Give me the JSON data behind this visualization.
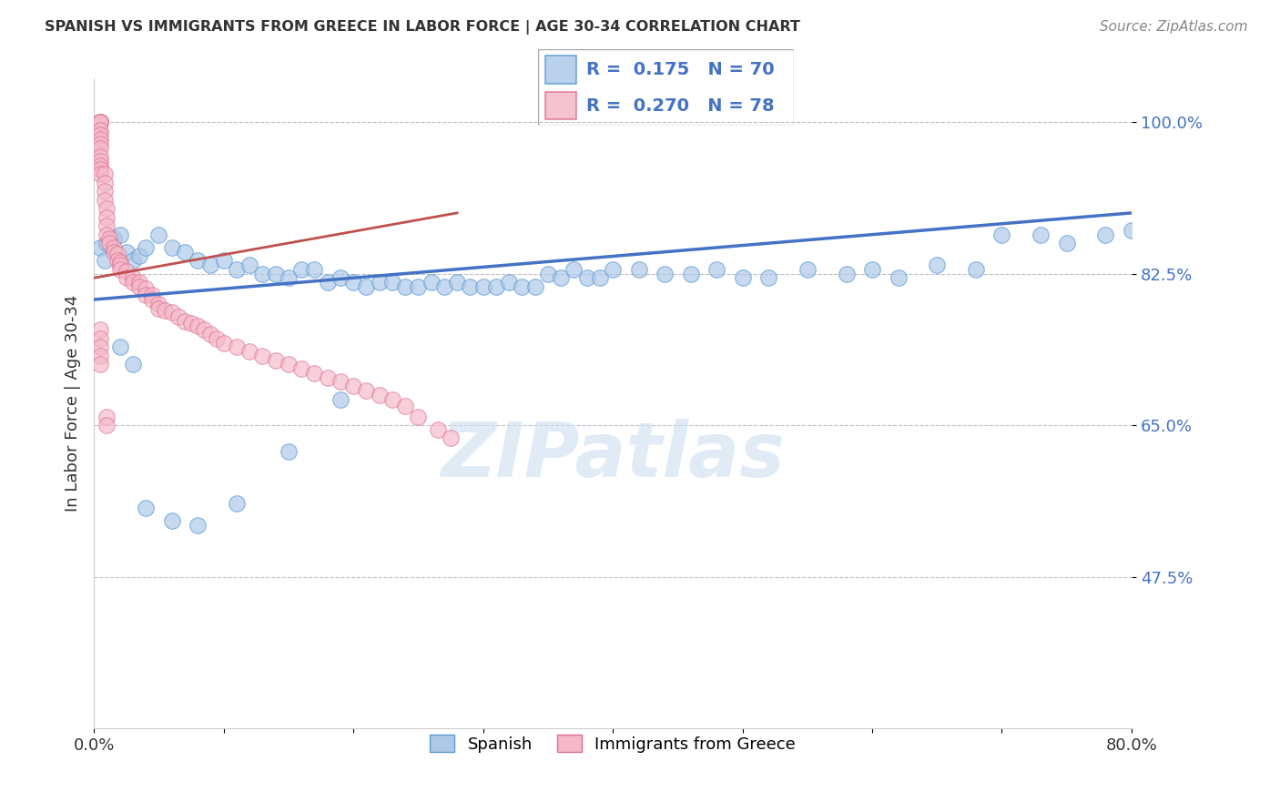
{
  "title": "SPANISH VS IMMIGRANTS FROM GREECE IN LABOR FORCE | AGE 30-34 CORRELATION CHART",
  "source": "Source: ZipAtlas.com",
  "ylabel": "In Labor Force | Age 30-34",
  "xlim": [
    0.0,
    0.8
  ],
  "ylim": [
    0.3,
    1.05
  ],
  "xticks": [
    0.0,
    0.1,
    0.2,
    0.3,
    0.4,
    0.5,
    0.6,
    0.7,
    0.8
  ],
  "xticklabels": [
    "0.0%",
    "",
    "",
    "",
    "",
    "",
    "",
    "",
    "80.0%"
  ],
  "yticks": [
    0.475,
    0.65,
    0.825,
    1.0
  ],
  "yticklabels": [
    "47.5%",
    "65.0%",
    "82.5%",
    "100.0%"
  ],
  "blue_R": 0.175,
  "blue_N": 70,
  "pink_R": 0.27,
  "pink_N": 78,
  "blue_color": "#aec9e8",
  "pink_color": "#f4b8c8",
  "blue_edge_color": "#5b9bd5",
  "pink_edge_color": "#e07090",
  "blue_line_color": "#4472c4",
  "pink_line_color": "#c0504d",
  "ytick_color": "#4472c4",
  "legend_label_blue": "Spanish",
  "legend_label_pink": "Immigrants from Greece",
  "blue_line_x0": 0.0,
  "blue_line_y0": 0.795,
  "blue_line_x1": 0.8,
  "blue_line_y1": 0.895,
  "pink_line_x0": 0.0,
  "pink_line_y0": 0.82,
  "pink_line_x1": 0.28,
  "pink_line_y1": 0.895,
  "blue_scatter_x": [
    0.005,
    0.008,
    0.01,
    0.015,
    0.02,
    0.025,
    0.03,
    0.035,
    0.04,
    0.05,
    0.06,
    0.07,
    0.08,
    0.09,
    0.1,
    0.11,
    0.12,
    0.13,
    0.14,
    0.15,
    0.16,
    0.17,
    0.18,
    0.19,
    0.2,
    0.21,
    0.22,
    0.23,
    0.24,
    0.25,
    0.26,
    0.27,
    0.28,
    0.29,
    0.3,
    0.31,
    0.32,
    0.33,
    0.34,
    0.35,
    0.36,
    0.37,
    0.38,
    0.39,
    0.4,
    0.42,
    0.44,
    0.46,
    0.48,
    0.5,
    0.52,
    0.55,
    0.58,
    0.6,
    0.62,
    0.65,
    0.68,
    0.7,
    0.73,
    0.75,
    0.78,
    0.8,
    0.19,
    0.15,
    0.11,
    0.08,
    0.06,
    0.04,
    0.03,
    0.02
  ],
  "blue_scatter_y": [
    0.855,
    0.84,
    0.86,
    0.865,
    0.87,
    0.85,
    0.84,
    0.845,
    0.855,
    0.87,
    0.855,
    0.85,
    0.84,
    0.835,
    0.84,
    0.83,
    0.835,
    0.825,
    0.825,
    0.82,
    0.83,
    0.83,
    0.815,
    0.82,
    0.815,
    0.81,
    0.815,
    0.815,
    0.81,
    0.81,
    0.815,
    0.81,
    0.815,
    0.81,
    0.81,
    0.81,
    0.815,
    0.81,
    0.81,
    0.825,
    0.82,
    0.83,
    0.82,
    0.82,
    0.83,
    0.83,
    0.825,
    0.825,
    0.83,
    0.82,
    0.82,
    0.83,
    0.825,
    0.83,
    0.82,
    0.835,
    0.83,
    0.87,
    0.87,
    0.86,
    0.87,
    0.875,
    0.68,
    0.62,
    0.56,
    0.535,
    0.54,
    0.555,
    0.72,
    0.74
  ],
  "pink_scatter_x": [
    0.005,
    0.005,
    0.005,
    0.005,
    0.005,
    0.005,
    0.005,
    0.005,
    0.005,
    0.005,
    0.005,
    0.005,
    0.005,
    0.005,
    0.005,
    0.008,
    0.008,
    0.008,
    0.008,
    0.01,
    0.01,
    0.01,
    0.01,
    0.012,
    0.012,
    0.015,
    0.015,
    0.018,
    0.018,
    0.02,
    0.02,
    0.02,
    0.025,
    0.025,
    0.03,
    0.03,
    0.035,
    0.035,
    0.04,
    0.04,
    0.045,
    0.045,
    0.05,
    0.05,
    0.055,
    0.06,
    0.065,
    0.07,
    0.075,
    0.08,
    0.085,
    0.09,
    0.095,
    0.1,
    0.11,
    0.12,
    0.13,
    0.14,
    0.15,
    0.16,
    0.17,
    0.18,
    0.19,
    0.2,
    0.21,
    0.22,
    0.23,
    0.24,
    0.25,
    0.265,
    0.275,
    0.005,
    0.005,
    0.005,
    0.005,
    0.005,
    0.01,
    0.01
  ],
  "pink_scatter_y": [
    1.0,
    1.0,
    1.0,
    1.0,
    1.0,
    0.99,
    0.985,
    0.98,
    0.975,
    0.97,
    0.96,
    0.955,
    0.95,
    0.945,
    0.94,
    0.94,
    0.93,
    0.92,
    0.91,
    0.9,
    0.89,
    0.88,
    0.87,
    0.865,
    0.86,
    0.855,
    0.85,
    0.848,
    0.84,
    0.838,
    0.835,
    0.83,
    0.828,
    0.82,
    0.82,
    0.815,
    0.815,
    0.81,
    0.808,
    0.8,
    0.8,
    0.795,
    0.79,
    0.785,
    0.782,
    0.78,
    0.775,
    0.77,
    0.768,
    0.765,
    0.76,
    0.755,
    0.75,
    0.745,
    0.74,
    0.735,
    0.73,
    0.725,
    0.72,
    0.715,
    0.71,
    0.705,
    0.7,
    0.695,
    0.69,
    0.685,
    0.68,
    0.672,
    0.66,
    0.645,
    0.635,
    0.76,
    0.75,
    0.74,
    0.73,
    0.72,
    0.66,
    0.65
  ]
}
